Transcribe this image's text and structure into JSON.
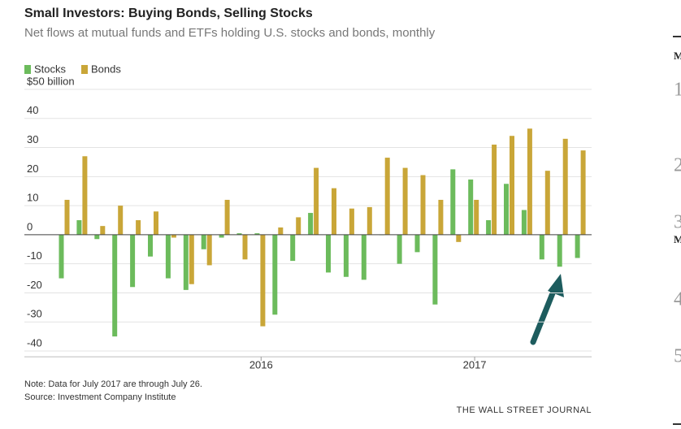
{
  "chart_data": {
    "type": "bar",
    "title": "Small Investors: Buying Bonds, Selling Stocks",
    "subtitle": "Net flows at mutual funds and ETFs holding U.S. stocks and bonds, monthly",
    "categories": [
      null,
      null,
      null,
      null,
      null,
      null,
      null,
      null,
      null,
      null,
      null,
      "2016",
      null,
      null,
      null,
      null,
      null,
      null,
      null,
      null,
      null,
      null,
      null,
      "2017",
      null,
      null,
      null,
      null,
      null,
      null
    ],
    "series": [
      {
        "name": "Stocks",
        "color": "#6cbb5c",
        "values": [
          -15,
          5,
          -1.5,
          -35,
          -18,
          -7.5,
          -15,
          -19,
          -5,
          -1,
          0.5,
          0.5,
          -27.5,
          -9,
          7.5,
          -13,
          -14.5,
          -15.5,
          0,
          -10,
          -6,
          -24,
          22.5,
          19,
          5,
          17.5,
          8.5,
          -8.5,
          -11,
          -8
        ]
      },
      {
        "name": "Bonds",
        "color": "#c9a638",
        "values": [
          12,
          27,
          3,
          10,
          5,
          8,
          -1,
          -17,
          -10.5,
          12,
          -8.5,
          -31.5,
          2.5,
          6,
          23,
          16,
          9,
          9.5,
          26.5,
          23,
          20.5,
          12,
          -2.5,
          12,
          31,
          34,
          36.5,
          22,
          33,
          29
        ]
      }
    ],
    "ylim": [
      -42,
      50
    ],
    "yticks": [
      -40,
      -30,
      -20,
      -10,
      0,
      10,
      20,
      30,
      40,
      {
        "value": 50,
        "label": "$50 billion"
      }
    ],
    "grid": true,
    "legend": "top-left",
    "note": "Note: Data for July 2017 are through July 26.",
    "source": "Source: Investment Company Institute",
    "credit": "THE WALL STREET JOURNAL"
  },
  "sidebar": {
    "labels": [
      "M",
      "1",
      "2",
      "3",
      "M",
      "4",
      "5"
    ]
  }
}
